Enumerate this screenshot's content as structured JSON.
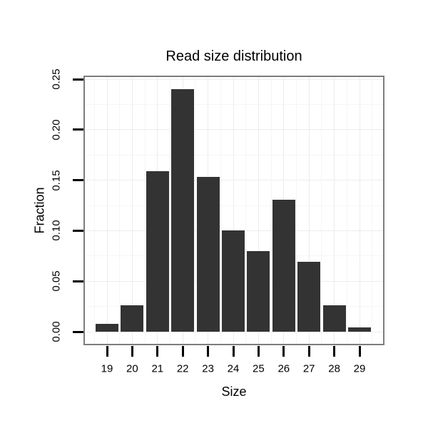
{
  "chart_data": {
    "type": "bar",
    "title": "Read size distribution",
    "xlabel": "Size",
    "ylabel": "Fraction",
    "categories": [
      19,
      20,
      21,
      22,
      23,
      24,
      25,
      26,
      27,
      28,
      29
    ],
    "values": [
      0.008,
      0.026,
      0.159,
      0.24,
      0.153,
      0.1,
      0.08,
      0.131,
      0.069,
      0.026,
      0.004
    ],
    "ytick_values": [
      0.0,
      0.05,
      0.1,
      0.15,
      0.2,
      0.25
    ],
    "ytick_labels": [
      "0.00",
      "0.05",
      "0.10",
      "0.15",
      "0.20",
      "0.25"
    ],
    "ylim": [
      -0.013,
      0.254
    ],
    "xlim": [
      18.1,
      29.95
    ],
    "grid": "major and minor gridlines, very light gray, minor at 0.025 / half-unit steps",
    "legend": "none",
    "colors": {
      "bar": "#333333",
      "panel_border": "#7d7d7d",
      "grid_major": "#ececec",
      "grid_minor": "#f5f5f5",
      "tick": "#000000",
      "text": "#000000",
      "background": "#ffffff"
    }
  }
}
